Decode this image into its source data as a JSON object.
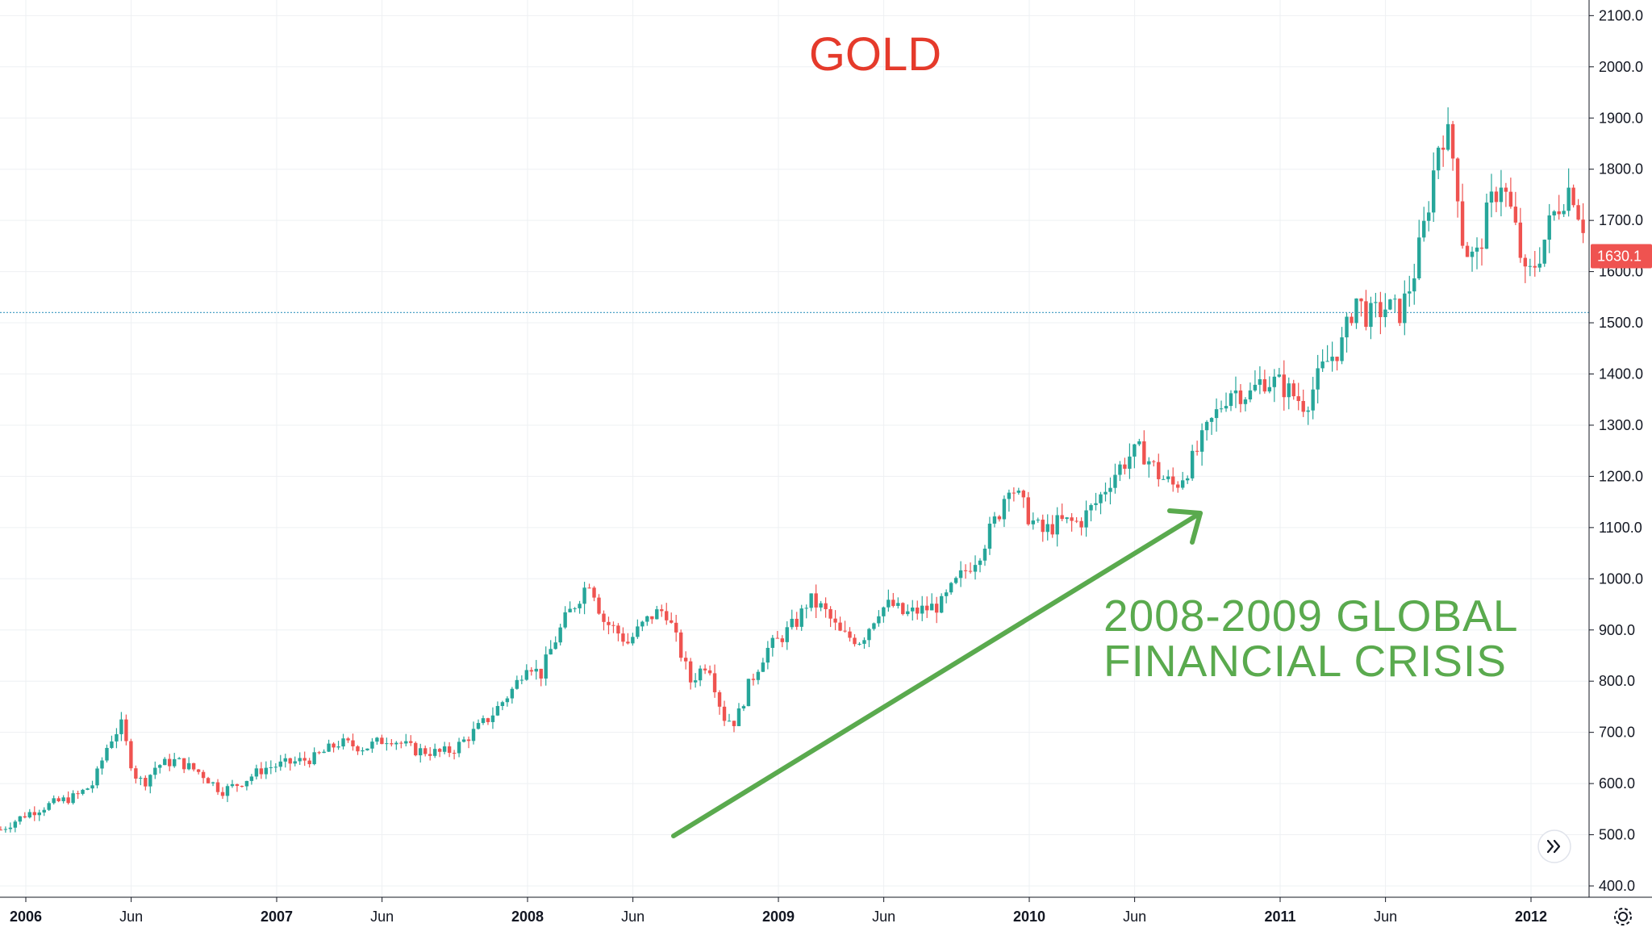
{
  "colors": {
    "up": "#26a69a",
    "down": "#ef5350",
    "title": "#e53a2b",
    "annotation": "#5aaa4e",
    "last_price": "#ef5350",
    "ref_line": "#4fa3c7",
    "grid": "#eef0f3",
    "axis": "#131722"
  },
  "controls": {
    "scroll_icon": "double-chevron-right-icon",
    "settings_icon": "gear-icon"
  },
  "chart_data": {
    "type": "candlestick",
    "title": "GOLD",
    "annotation": [
      "2008-2009 GLOBAL",
      "FINANCIAL CRISIS"
    ],
    "y_ticks": [
      400,
      500,
      600,
      700,
      800,
      900,
      1000,
      1100,
      1200,
      1300,
      1400,
      1500,
      1600,
      1700,
      1800,
      1900,
      2000,
      2100
    ],
    "y_tick_labels": [
      "400.0",
      "500.0",
      "600.0",
      "700.0",
      "800.0",
      "900.0",
      "1000.0",
      "1100.0",
      "1200.0",
      "1300.0",
      "1400.0",
      "1500.0",
      "1600.0",
      "1700.0",
      "1800.0",
      "1900.0",
      "2000.0",
      "2100.0"
    ],
    "ylim": [
      380,
      2120
    ],
    "x_ticks": [
      {
        "label": "2006",
        "date": 2006.0,
        "year": true
      },
      {
        "label": "Jun",
        "date": 2006.42,
        "year": false
      },
      {
        "label": "2007",
        "date": 2007.0,
        "year": true
      },
      {
        "label": "Jun",
        "date": 2007.42,
        "year": false
      },
      {
        "label": "2008",
        "date": 2008.0,
        "year": true
      },
      {
        "label": "Jun",
        "date": 2008.42,
        "year": false
      },
      {
        "label": "2009",
        "date": 2009.0,
        "year": true
      },
      {
        "label": "Jun",
        "date": 2009.42,
        "year": false
      },
      {
        "label": "2010",
        "date": 2010.0,
        "year": true
      },
      {
        "label": "Jun",
        "date": 2010.42,
        "year": false
      },
      {
        "label": "2011",
        "date": 2011.0,
        "year": true
      },
      {
        "label": "Jun",
        "date": 2011.42,
        "year": false
      },
      {
        "label": "2012",
        "date": 2012.0,
        "year": true
      }
    ],
    "xlim": [
      2005.9,
      2012.25
    ],
    "last_price": 1630.1,
    "last_price_label": "1630.1",
    "reference_line": 1520,
    "legend": "none",
    "grid": true,
    "price_path": [
      [
        2005.9,
        510
      ],
      [
        2006.0,
        540
      ],
      [
        2006.1,
        560
      ],
      [
        2006.2,
        575
      ],
      [
        2006.27,
        600
      ],
      [
        2006.33,
        680
      ],
      [
        2006.38,
        715
      ],
      [
        2006.43,
        620
      ],
      [
        2006.47,
        600
      ],
      [
        2006.52,
        635
      ],
      [
        2006.6,
        645
      ],
      [
        2006.7,
        620
      ],
      [
        2006.78,
        585
      ],
      [
        2006.85,
        600
      ],
      [
        2006.95,
        630
      ],
      [
        2007.05,
        640
      ],
      [
        2007.15,
        650
      ],
      [
        2007.25,
        680
      ],
      [
        2007.35,
        670
      ],
      [
        2007.45,
        690
      ],
      [
        2007.55,
        665
      ],
      [
        2007.65,
        660
      ],
      [
        2007.7,
        665
      ],
      [
        2007.75,
        685
      ],
      [
        2007.85,
        730
      ],
      [
        2007.95,
        790
      ],
      [
        2008.0,
        840
      ],
      [
        2008.05,
        810
      ],
      [
        2008.1,
        870
      ],
      [
        2008.15,
        920
      ],
      [
        2008.2,
        960
      ],
      [
        2008.25,
        1000
      ],
      [
        2008.3,
        920
      ],
      [
        2008.35,
        900
      ],
      [
        2008.4,
        875
      ],
      [
        2008.45,
        905
      ],
      [
        2008.5,
        930
      ],
      [
        2008.55,
        940
      ],
      [
        2008.6,
        870
      ],
      [
        2008.65,
        800
      ],
      [
        2008.72,
        840
      ],
      [
        2008.78,
        730
      ],
      [
        2008.83,
        720
      ],
      [
        2008.88,
        790
      ],
      [
        2008.95,
        860
      ],
      [
        2009.0,
        880
      ],
      [
        2009.08,
        920
      ],
      [
        2009.12,
        960
      ],
      [
        2009.18,
        940
      ],
      [
        2009.25,
        890
      ],
      [
        2009.33,
        880
      ],
      [
        2009.4,
        940
      ],
      [
        2009.45,
        950
      ],
      [
        2009.5,
        930
      ],
      [
        2009.58,
        940
      ],
      [
        2009.65,
        950
      ],
      [
        2009.72,
        1000
      ],
      [
        2009.8,
        1050
      ],
      [
        2009.88,
        1130
      ],
      [
        2009.92,
        1190
      ],
      [
        2010.0,
        1120
      ],
      [
        2010.05,
        1090
      ],
      [
        2010.12,
        1110
      ],
      [
        2010.2,
        1110
      ],
      [
        2010.27,
        1150
      ],
      [
        2010.33,
        1200
      ],
      [
        2010.4,
        1240
      ],
      [
        2010.45,
        1250
      ],
      [
        2010.52,
        1200
      ],
      [
        2010.58,
        1180
      ],
      [
        2010.65,
        1230
      ],
      [
        2010.72,
        1300
      ],
      [
        2010.8,
        1370
      ],
      [
        2010.88,
        1360
      ],
      [
        2010.93,
        1390
      ],
      [
        2011.0,
        1380
      ],
      [
        2011.05,
        1360
      ],
      [
        2011.1,
        1340
      ],
      [
        2011.18,
        1420
      ],
      [
        2011.25,
        1460
      ],
      [
        2011.3,
        1550
      ],
      [
        2011.35,
        1510
      ],
      [
        2011.42,
        1530
      ],
      [
        2011.48,
        1520
      ],
      [
        2011.53,
        1590
      ],
      [
        2011.58,
        1700
      ],
      [
        2011.63,
        1850
      ],
      [
        2011.66,
        1880
      ],
      [
        2011.7,
        1800
      ],
      [
        2011.73,
        1650
      ],
      [
        2011.78,
        1620
      ],
      [
        2011.83,
        1720
      ],
      [
        2011.88,
        1780
      ],
      [
        2011.93,
        1700
      ],
      [
        2011.98,
        1580
      ],
      [
        2012.03,
        1630
      ],
      [
        2012.08,
        1700
      ],
      [
        2012.12,
        1740
      ],
      [
        2012.16,
        1770
      ],
      [
        2012.2,
        1700
      ],
      [
        2012.25,
        1660
      ]
    ]
  }
}
